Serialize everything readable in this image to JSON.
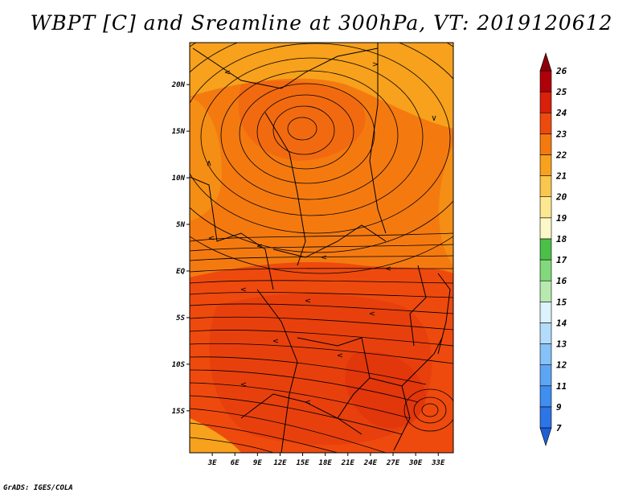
{
  "title": "WBPT [C] and Sreamline at 300hPa, VT: 2019120612",
  "footer": "GrADS: IGES/COLA",
  "map": {
    "lat_labels": [
      "20N",
      "15N",
      "10N",
      "5N",
      "EQ",
      "5S",
      "10S",
      "15S"
    ],
    "lat_values": [
      20,
      15,
      10,
      5,
      0,
      -5,
      -10,
      -15
    ],
    "lon_labels": [
      "3E",
      "6E",
      "9E",
      "12E",
      "15E",
      "18E",
      "21E",
      "24E",
      "27E",
      "30E",
      "33E"
    ],
    "lon_values": [
      3,
      6,
      9,
      12,
      15,
      18,
      21,
      24,
      27,
      30,
      33
    ],
    "lon_range": [
      0,
      35
    ],
    "lat_range": [
      -19.5,
      24.5
    ]
  },
  "colorbar": {
    "labels": [
      "7",
      "9",
      "11",
      "12",
      "13",
      "14",
      "15",
      "16",
      "17",
      "18",
      "19",
      "20",
      "21",
      "22",
      "23",
      "24",
      "25",
      "26"
    ],
    "colors": [
      "#1e5fd6",
      "#2d74e6",
      "#3f8ef0",
      "#5da6f5",
      "#86c1f8",
      "#b4dcfa",
      "#dcf2fc",
      "#b8eab0",
      "#82d97c",
      "#4cbf48",
      "#fcf8c8",
      "#fbe890",
      "#f9c64e",
      "#f7a11c",
      "#f47a10",
      "#ee4a0e",
      "#d8200a",
      "#b0000a",
      "#8a0008"
    ]
  }
}
